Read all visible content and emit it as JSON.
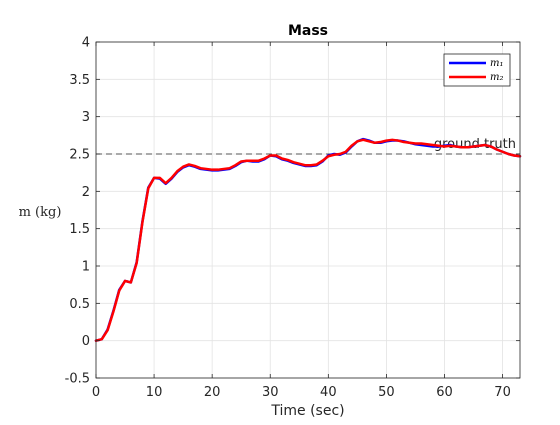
{
  "chart_data": {
    "type": "line",
    "title": "Mass",
    "xlabel": "Time (sec)",
    "ylabel": "m (kg)",
    "xlim": [
      0,
      73
    ],
    "ylim": [
      -0.5,
      4
    ],
    "xticks": [
      0,
      10,
      20,
      30,
      40,
      50,
      60,
      70
    ],
    "xtick_labels": [
      "0",
      "10",
      "20",
      "30",
      "40",
      "50",
      "60",
      "70"
    ],
    "yticks": [
      -0.5,
      0,
      0.5,
      1,
      1.5,
      2,
      2.5,
      3,
      3.5,
      4
    ],
    "ytick_labels": [
      "-0.5",
      "0",
      "0.5",
      "1",
      "1.5",
      "2",
      "2.5",
      "3",
      "3.5",
      "4"
    ],
    "grid": true,
    "legend_position": "top-right",
    "series": [
      {
        "name": "m₁",
        "color": "#0000ff",
        "x": [
          0,
          1,
          2,
          3,
          4,
          5,
          6,
          7,
          8,
          9,
          10,
          11,
          12,
          13,
          14,
          15,
          16,
          17,
          18,
          19,
          20,
          21,
          22,
          23,
          24,
          25,
          26,
          27,
          28,
          29,
          30,
          31,
          32,
          33,
          34,
          35,
          36,
          37,
          38,
          39,
          40,
          41,
          42,
          43,
          44,
          45,
          46,
          47,
          48,
          49,
          50,
          51,
          52,
          53,
          54,
          55,
          56,
          57,
          58,
          59,
          60,
          61,
          62,
          63,
          64,
          65,
          66,
          67,
          68,
          69,
          70,
          71,
          72,
          73
        ],
        "values": [
          0,
          0.02,
          0.15,
          0.4,
          0.68,
          0.8,
          0.78,
          1.05,
          1.6,
          2.05,
          2.18,
          2.17,
          2.1,
          2.17,
          2.26,
          2.32,
          2.35,
          2.33,
          2.3,
          2.29,
          2.28,
          2.28,
          2.29,
          2.3,
          2.34,
          2.39,
          2.41,
          2.4,
          2.4,
          2.43,
          2.48,
          2.47,
          2.43,
          2.41,
          2.38,
          2.36,
          2.34,
          2.34,
          2.35,
          2.4,
          2.48,
          2.5,
          2.49,
          2.52,
          2.6,
          2.67,
          2.7,
          2.68,
          2.65,
          2.65,
          2.67,
          2.68,
          2.68,
          2.67,
          2.65,
          2.63,
          2.62,
          2.61,
          2.6,
          2.6,
          2.61,
          2.62,
          2.6,
          2.59,
          2.59,
          2.6,
          2.61,
          2.62,
          2.6,
          2.56,
          2.53,
          2.5,
          2.48,
          2.47
        ]
      },
      {
        "name": "m₂",
        "color": "#ff0000",
        "x": [
          0,
          1,
          2,
          3,
          4,
          5,
          6,
          7,
          8,
          9,
          10,
          11,
          12,
          13,
          14,
          15,
          16,
          17,
          18,
          19,
          20,
          21,
          22,
          23,
          24,
          25,
          26,
          27,
          28,
          29,
          30,
          31,
          32,
          33,
          34,
          35,
          36,
          37,
          38,
          39,
          40,
          41,
          42,
          43,
          44,
          45,
          46,
          47,
          48,
          49,
          50,
          51,
          52,
          53,
          54,
          55,
          56,
          57,
          58,
          59,
          60,
          61,
          62,
          63,
          64,
          65,
          66,
          67,
          68,
          69,
          70,
          71,
          72,
          73
        ],
        "values": [
          0,
          0.02,
          0.14,
          0.39,
          0.67,
          0.8,
          0.78,
          1.04,
          1.59,
          2.04,
          2.18,
          2.18,
          2.11,
          2.18,
          2.27,
          2.33,
          2.36,
          2.34,
          2.31,
          2.3,
          2.29,
          2.29,
          2.3,
          2.31,
          2.35,
          2.4,
          2.41,
          2.41,
          2.41,
          2.44,
          2.48,
          2.48,
          2.44,
          2.42,
          2.39,
          2.37,
          2.35,
          2.35,
          2.36,
          2.41,
          2.47,
          2.49,
          2.5,
          2.53,
          2.61,
          2.67,
          2.69,
          2.67,
          2.65,
          2.66,
          2.68,
          2.69,
          2.68,
          2.66,
          2.65,
          2.64,
          2.64,
          2.63,
          2.62,
          2.61,
          2.6,
          2.61,
          2.6,
          2.59,
          2.59,
          2.6,
          2.61,
          2.62,
          2.6,
          2.56,
          2.53,
          2.5,
          2.48,
          2.47
        ]
      }
    ],
    "reference_line": {
      "label": "ground truth",
      "y": 2.5,
      "color": "#555555",
      "style": "dashed"
    }
  }
}
